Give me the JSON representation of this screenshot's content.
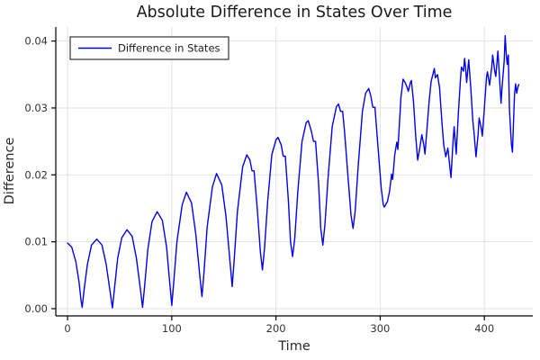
{
  "title": "Absolute Difference in States Over Time",
  "colors": {
    "series": "#0000ee",
    "grid": "#e2e2e2",
    "spine": "#000000",
    "tick_text": "#333333",
    "title_text": "#1a1a1a",
    "axis_label_text": "#2a2a2a",
    "legend_border": "#333333",
    "legend_background": "#ffffff",
    "background": "#ffffff"
  },
  "legend": {
    "entries": [
      {
        "label": "Difference in States",
        "color": "#0000ee"
      }
    ],
    "position": "top-left"
  },
  "chart_data": {
    "type": "line",
    "title": "Absolute Difference in States Over Time",
    "xlabel": "Time",
    "ylabel": "Difference",
    "xlim": [
      -11.3,
      446.5
    ],
    "ylim": [
      -0.00108,
      0.0421
    ],
    "xticks": [
      0,
      100,
      200,
      300,
      400
    ],
    "xtick_labels": [
      "0",
      "100",
      "200",
      "300",
      "400"
    ],
    "yticks": [
      0.0,
      0.01,
      0.02,
      0.03,
      0.04
    ],
    "ytick_labels": [
      "0.00",
      "0.01",
      "0.02",
      "0.03",
      "0.04"
    ],
    "grid": true,
    "legend_position": "top-left",
    "series": [
      {
        "name": "Difference in States",
        "color": "#0000ee",
        "x": [
          0,
          4,
          8,
          11,
          13,
          14,
          16,
          19,
          23,
          28,
          33,
          37,
          41,
          43,
          45,
          48,
          52,
          57,
          62,
          66,
          70,
          72,
          74,
          77,
          81,
          86,
          91,
          95,
          98,
          100,
          102,
          105,
          110,
          114,
          119,
          123,
          127,
          129,
          131,
          134,
          139,
          143,
          148,
          152,
          156,
          158,
          160,
          163,
          168,
          172,
          175,
          177,
          179,
          182,
          185,
          187,
          189,
          192,
          196,
          200,
          202,
          205,
          207,
          209,
          212,
          214,
          216,
          218,
          221,
          225,
          229,
          231,
          234,
          236,
          238,
          241,
          243,
          245,
          247,
          250,
          254,
          258,
          260,
          262,
          264,
          266,
          269,
          272,
          274,
          276,
          279,
          283,
          286,
          289,
          291,
          293,
          295,
          298,
          301,
          303,
          304,
          307,
          309,
          311,
          312,
          314,
          316,
          317,
          319,
          320,
          322,
          324,
          326,
          327,
          329,
          330,
          332,
          334,
          336,
          338,
          340,
          342,
          343,
          345,
          347,
          349,
          352,
          353,
          355,
          357,
          359,
          361,
          363,
          365,
          367,
          368,
          370,
          371,
          373,
          375,
          377,
          378,
          380,
          381,
          382,
          383,
          385,
          387,
          389,
          390,
          392,
          394,
          395,
          397,
          398,
          400,
          402,
          403,
          405,
          407,
          408,
          410,
          411,
          413,
          414,
          416,
          417,
          419,
          420,
          421,
          422,
          423,
          424,
          425,
          426,
          427,
          428,
          429,
          430,
          431,
          432,
          433
        ],
        "y": [
          0.0098,
          0.0092,
          0.007,
          0.004,
          0.0012,
          0.0002,
          0.003,
          0.0066,
          0.0095,
          0.0104,
          0.0095,
          0.0067,
          0.0024,
          0.0001,
          0.003,
          0.0075,
          0.0106,
          0.0118,
          0.0108,
          0.0076,
          0.0028,
          0.0002,
          0.0035,
          0.0088,
          0.013,
          0.0145,
          0.0132,
          0.0092,
          0.004,
          0.0005,
          0.0042,
          0.01,
          0.0155,
          0.0174,
          0.0158,
          0.0112,
          0.0048,
          0.0018,
          0.0055,
          0.0122,
          0.0182,
          0.0202,
          0.0185,
          0.0138,
          0.0068,
          0.0033,
          0.0075,
          0.0145,
          0.0212,
          0.023,
          0.0222,
          0.0206,
          0.0206,
          0.015,
          0.0085,
          0.0058,
          0.009,
          0.016,
          0.023,
          0.0252,
          0.0256,
          0.0245,
          0.0228,
          0.0228,
          0.016,
          0.01,
          0.0078,
          0.0105,
          0.0175,
          0.025,
          0.0278,
          0.0281,
          0.0265,
          0.025,
          0.025,
          0.0185,
          0.012,
          0.0095,
          0.0125,
          0.0195,
          0.0272,
          0.0302,
          0.0306,
          0.0295,
          0.0295,
          0.0262,
          0.02,
          0.014,
          0.012,
          0.0145,
          0.0215,
          0.0295,
          0.0322,
          0.0329,
          0.0318,
          0.0301,
          0.0301,
          0.024,
          0.018,
          0.0155,
          0.0152,
          0.016,
          0.0175,
          0.0201,
          0.0193,
          0.023,
          0.0249,
          0.0238,
          0.029,
          0.0316,
          0.0343,
          0.0338,
          0.033,
          0.0325,
          0.0338,
          0.0341,
          0.031,
          0.026,
          0.0222,
          0.024,
          0.026,
          0.0244,
          0.0231,
          0.027,
          0.031,
          0.034,
          0.0359,
          0.0345,
          0.035,
          0.033,
          0.0285,
          0.0245,
          0.0227,
          0.024,
          0.021,
          0.0196,
          0.025,
          0.0272,
          0.0231,
          0.029,
          0.034,
          0.0361,
          0.0355,
          0.0374,
          0.036,
          0.0338,
          0.0372,
          0.033,
          0.028,
          0.0265,
          0.0227,
          0.026,
          0.0285,
          0.027,
          0.0258,
          0.03,
          0.0345,
          0.0354,
          0.0334,
          0.036,
          0.0379,
          0.0355,
          0.0347,
          0.0385,
          0.036,
          0.0307,
          0.033,
          0.037,
          0.0408,
          0.038,
          0.0365,
          0.0379,
          0.03,
          0.0272,
          0.0245,
          0.0234,
          0.028,
          0.032,
          0.0336,
          0.0322,
          0.033,
          0.0335
        ]
      }
    ]
  }
}
